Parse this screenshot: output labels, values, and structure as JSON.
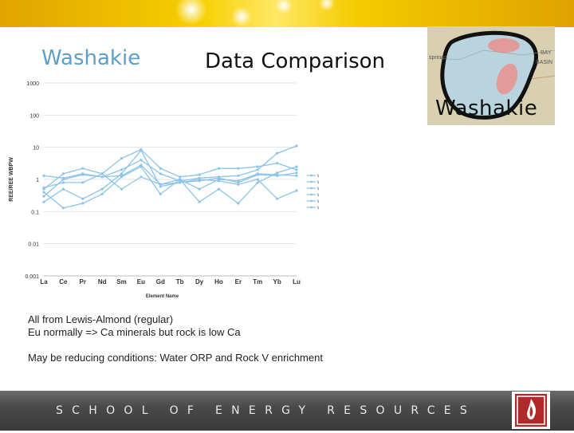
{
  "header": {
    "title_left": "Washakie",
    "title_main": "Data Comparison"
  },
  "map": {
    "tag": "Washakie",
    "labels": [
      "springs",
      "BAY",
      "BASIN"
    ]
  },
  "notes": [
    "All from Lewis-Almond (regular)",
    "Eu normally => Ca minerals but rock is low Ca",
    "May be reducing conditions: Water ORP and Rock V enrichment"
  ],
  "footer": {
    "text": "SCHOOL OF ENERGY RESOURCES"
  },
  "colors": {
    "series": "#8dc4e8",
    "accent": "#5e9fc8",
    "brand_red": "#b02a2a"
  },
  "chart_data": {
    "type": "line",
    "xlabel": "Element Name",
    "ylabel": "REE/REE WBPW",
    "yscale": "log",
    "ylim": [
      0.001,
      1000
    ],
    "yticks": [
      "0.001",
      "0.01",
      "0.1",
      "1",
      "10",
      "100",
      "1000"
    ],
    "grid": true,
    "legend_position": "right",
    "categories": [
      "La",
      "Ce",
      "Pr",
      "Nd",
      "Sm",
      "Eu",
      "Gd",
      "Tb",
      "Dy",
      "Ho",
      "Er",
      "Tm",
      "Yb",
      "Lu"
    ],
    "series": [
      {
        "name": "WA-33",
        "values": [
          1.3,
          1.1,
          1.5,
          1.2,
          1.3,
          2.8,
          0.7,
          0.8,
          0.9,
          1.1,
          0.8,
          1.4,
          1.3,
          1.6
        ]
      },
      {
        "name": "WA-34",
        "values": [
          0.5,
          1.5,
          2.2,
          1.5,
          4.5,
          8.5,
          2.2,
          1.2,
          1.4,
          2.2,
          2.2,
          2.5,
          3.2,
          2.0
        ]
      },
      {
        "name": "WA-35",
        "values": [
          0.3,
          1.0,
          1.4,
          1.2,
          2.0,
          4.0,
          1.5,
          0.9,
          1.1,
          1.2,
          1.3,
          2.0,
          6.5,
          11.0
        ]
      },
      {
        "name": "WA-36",
        "values": [
          0.4,
          0.13,
          0.18,
          0.35,
          1.2,
          2.5,
          0.35,
          1.0,
          0.2,
          0.5,
          0.18,
          0.8,
          1.6,
          2.5
        ]
      },
      {
        "name": "WA-37",
        "values": [
          0.2,
          0.5,
          0.25,
          0.5,
          1.5,
          8.0,
          0.6,
          0.8,
          1.0,
          0.9,
          0.7,
          1.0,
          0.25,
          0.45
        ]
      },
      {
        "name": "WA-40",
        "values": [
          0.55,
          0.8,
          0.8,
          1.5,
          0.5,
          1.2,
          0.7,
          1.0,
          0.5,
          1.0,
          0.9,
          1.5,
          1.4,
          1.3
        ]
      }
    ]
  }
}
